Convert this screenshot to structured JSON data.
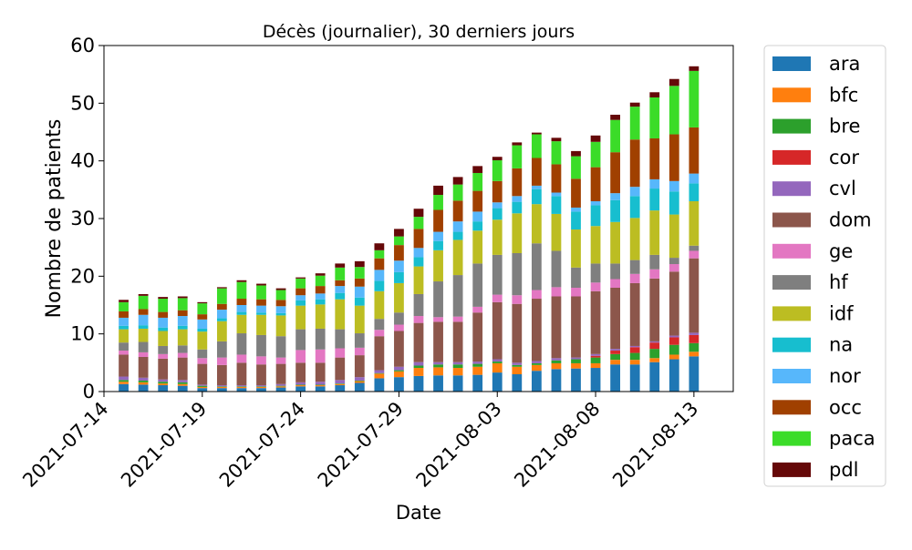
{
  "chart_data": {
    "type": "bar",
    "stacked": true,
    "title": "Décès (journalier), 30 derniers jours",
    "xlabel": "Date",
    "ylabel": "Nombre de patients",
    "ylim": [
      0,
      60
    ],
    "yticks": [
      0,
      10,
      20,
      30,
      40,
      50,
      60
    ],
    "xlim": [
      "2021-07-14",
      "2021-08-15"
    ],
    "xticks": [
      "2021-07-14",
      "2021-07-19",
      "2021-07-24",
      "2021-07-29",
      "2021-08-03",
      "2021-08-08",
      "2021-08-13"
    ],
    "legend_position": "outside-right",
    "grid": false,
    "dates": [
      "2021-07-15",
      "2021-07-16",
      "2021-07-17",
      "2021-07-18",
      "2021-07-19",
      "2021-07-20",
      "2021-07-21",
      "2021-07-22",
      "2021-07-23",
      "2021-07-24",
      "2021-07-25",
      "2021-07-26",
      "2021-07-27",
      "2021-07-28",
      "2021-07-29",
      "2021-07-30",
      "2021-07-31",
      "2021-08-01",
      "2021-08-02",
      "2021-08-03",
      "2021-08-04",
      "2021-08-05",
      "2021-08-06",
      "2021-08-07",
      "2021-08-08",
      "2021-08-09",
      "2021-08-10",
      "2021-08-11",
      "2021-08-12",
      "2021-08-13"
    ],
    "series": [
      {
        "name": "ara",
        "color": "#1f77b4",
        "values": [
          1.3,
          1.2,
          1.1,
          1.0,
          0.6,
          0.6,
          0.6,
          0.6,
          0.7,
          0.9,
          0.9,
          1.1,
          1.5,
          2.3,
          2.5,
          2.7,
          2.8,
          2.8,
          2.9,
          3.3,
          3.0,
          3.6,
          3.9,
          4.0,
          4.1,
          4.7,
          4.7,
          5.1,
          5.6,
          6.1
        ]
      },
      {
        "name": "bfc",
        "color": "#ff7f0e",
        "values": [
          0.4,
          0.4,
          0.3,
          0.3,
          0.2,
          0.2,
          0.2,
          0.2,
          0.2,
          0.2,
          0.2,
          0.2,
          0.3,
          0.8,
          1.0,
          1.4,
          1.4,
          1.3,
          1.4,
          1.6,
          1.3,
          1.0,
          1.0,
          0.9,
          0.8,
          0.8,
          0.8,
          0.7,
          0.8,
          0.8
        ]
      },
      {
        "name": "bre",
        "color": "#2ca02c",
        "values": [
          0.3,
          0.3,
          0.3,
          0.3,
          0.2,
          0.1,
          0.1,
          0.1,
          0.1,
          0.1,
          0.1,
          0.1,
          0.1,
          0.1,
          0.2,
          0.4,
          0.5,
          0.6,
          0.5,
          0.3,
          0.3,
          0.3,
          0.5,
          0.7,
          1.0,
          1.0,
          1.2,
          1.6,
          1.7,
          1.5
        ]
      },
      {
        "name": "cor",
        "color": "#d62728",
        "values": [
          0,
          0,
          0,
          0,
          0,
          0,
          0,
          0,
          0,
          0,
          0,
          0,
          0,
          0,
          0,
          0,
          0,
          0,
          0,
          0,
          0,
          0,
          0,
          0,
          0.3,
          0.6,
          1.0,
          1.1,
          1.3,
          1.4
        ]
      },
      {
        "name": "cvl",
        "color": "#9467bd",
        "values": [
          0.6,
          0.5,
          0.4,
          0.4,
          0.2,
          0.2,
          0.2,
          0.2,
          0.3,
          0.4,
          0.5,
          0.6,
          0.6,
          0.5,
          0.6,
          0.6,
          0.4,
          0.4,
          0.4,
          0.4,
          0.4,
          0.4,
          0.4,
          0.3,
          0.3,
          0.3,
          0.2,
          0.2,
          0.3,
          0.4
        ]
      },
      {
        "name": "dom",
        "color": "#8c564b",
        "values": [
          3.8,
          3.6,
          3.6,
          3.9,
          3.6,
          3.5,
          3.9,
          3.6,
          3.5,
          3.4,
          3.3,
          3.9,
          3.8,
          5.9,
          6.2,
          6.8,
          7.0,
          7.0,
          8.5,
          9.9,
          10.2,
          10.8,
          10.7,
          10.6,
          10.9,
          10.6,
          10.9,
          10.9,
          11.1,
          12.9
        ]
      },
      {
        "name": "ge",
        "color": "#e377c2",
        "values": [
          0.7,
          0.8,
          0.8,
          0.8,
          1.0,
          1.3,
          1.4,
          1.4,
          1.1,
          2.2,
          2.3,
          1.6,
          1.3,
          1.1,
          1.1,
          1.2,
          0.8,
          0.9,
          1.0,
          1.3,
          1.5,
          1.5,
          1.6,
          1.5,
          1.5,
          1.5,
          1.6,
          1.6,
          1.3,
          1.3
        ]
      },
      {
        "name": "hf",
        "color": "#7f7f7f",
        "values": [
          1.4,
          1.8,
          1.4,
          1.3,
          1.5,
          2.8,
          3.7,
          3.7,
          3.7,
          3.6,
          3.6,
          3.3,
          2.5,
          1.9,
          2.1,
          3.8,
          6.2,
          7.2,
          7.5,
          6.9,
          7.3,
          8.1,
          6.3,
          3.5,
          3.3,
          2.7,
          2.4,
          2.5,
          1.1,
          0.9
        ]
      },
      {
        "name": "idf",
        "color": "#bcbd22",
        "values": [
          2.3,
          2.3,
          2.6,
          2.8,
          3.1,
          3.5,
          3.2,
          3.5,
          3.6,
          4.1,
          4.2,
          5.2,
          4.8,
          4.8,
          5.1,
          4.8,
          5.4,
          6.1,
          5.7,
          6.1,
          6.9,
          6.8,
          6.4,
          6.6,
          6.5,
          7.2,
          7.3,
          7.7,
          7.5,
          7.7
        ]
      },
      {
        "name": "na",
        "color": "#17becf",
        "values": [
          0.6,
          0.6,
          0.6,
          0.6,
          0.5,
          0.5,
          0.5,
          0.4,
          0.4,
          0.9,
          0.9,
          1.1,
          1.4,
          1.8,
          1.9,
          1.6,
          1.6,
          1.4,
          1.6,
          2.0,
          2.0,
          2.6,
          3.1,
          3.1,
          3.6,
          3.8,
          3.8,
          3.8,
          4.0,
          3.1
        ]
      },
      {
        "name": "nor",
        "color": "#57b7fb",
        "values": [
          1.4,
          1.8,
          1.7,
          1.7,
          1.6,
          1.5,
          1.2,
          1.2,
          1.2,
          0.9,
          1.0,
          1.2,
          1.9,
          1.9,
          2.0,
          1.6,
          1.6,
          1.8,
          1.7,
          1.0,
          1.0,
          0.6,
          0.6,
          0.7,
          0.7,
          1.2,
          1.6,
          1.6,
          1.8,
          1.7
        ]
      },
      {
        "name": "occ",
        "color": "#a04000",
        "values": [
          1.1,
          1.0,
          1.0,
          1.0,
          0.9,
          1.0,
          1.1,
          1.1,
          1.1,
          1.2,
          1.3,
          1.0,
          1.4,
          2.0,
          2.7,
          3.3,
          3.8,
          3.6,
          3.6,
          3.7,
          4.8,
          4.8,
          4.9,
          5.0,
          5.9,
          7.1,
          8.2,
          7.1,
          8.1,
          8.0
        ]
      },
      {
        "name": "paca",
        "color": "#3bdc28",
        "values": [
          1.6,
          2.3,
          2.3,
          2.1,
          1.9,
          2.7,
          2.9,
          2.4,
          1.7,
          1.7,
          1.8,
          2.2,
          2.0,
          1.4,
          1.5,
          2.1,
          2.6,
          2.8,
          3.1,
          3.6,
          4.0,
          4.1,
          4.0,
          3.9,
          4.4,
          5.6,
          5.7,
          7.1,
          8.4,
          9.8
        ]
      },
      {
        "name": "pdl",
        "color": "#650808",
        "values": [
          0.4,
          0.3,
          0.3,
          0.3,
          0.2,
          0.2,
          0.3,
          0.3,
          0.3,
          0.2,
          0.4,
          0.7,
          1.0,
          1.2,
          1.3,
          1.4,
          1.6,
          1.3,
          1.2,
          0.6,
          0.5,
          0.3,
          0.6,
          0.9,
          1.1,
          0.9,
          0.7,
          0.9,
          1.2,
          0.8
        ]
      }
    ]
  }
}
